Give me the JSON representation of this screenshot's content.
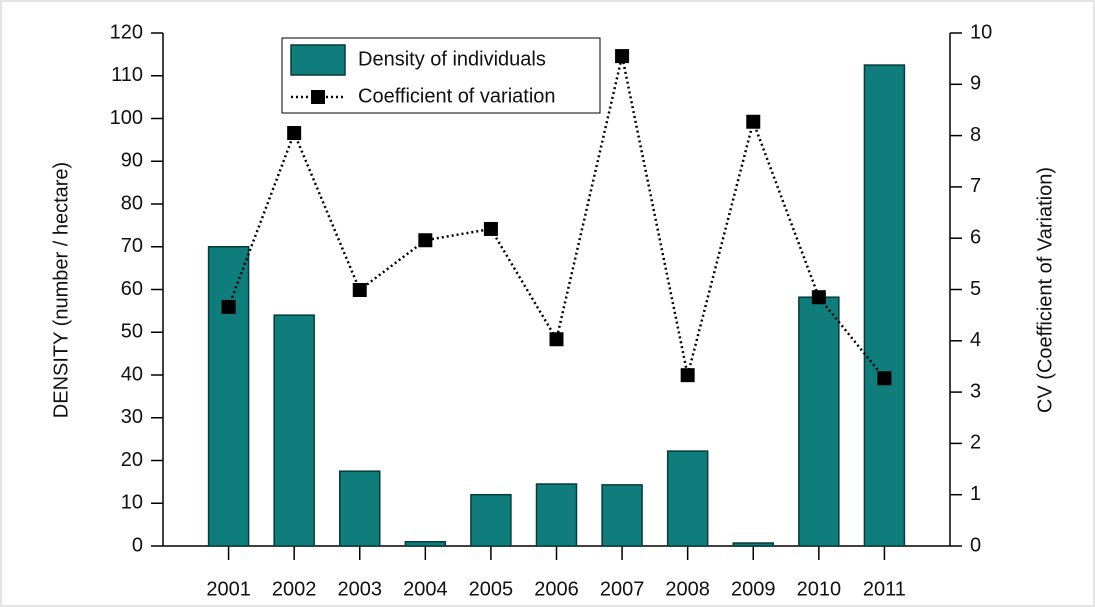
{
  "chart_data": {
    "type": "bar",
    "categories": [
      "2001",
      "2002",
      "2003",
      "2004",
      "2005",
      "2006",
      "2007",
      "2008",
      "2009",
      "2010",
      "2011"
    ],
    "series": [
      {
        "name": "Density of individuals",
        "color": "#0e7d7c",
        "values": [
          70,
          54,
          17.5,
          1,
          12,
          14.5,
          14.3,
          22.2,
          0.7,
          58.2,
          112.5
        ]
      },
      {
        "name": "Coefficient of variation",
        "type": "line",
        "axis": "y2",
        "color": "#000000",
        "values": [
          4.66,
          8.05,
          4.99,
          5.96,
          6.18,
          4.03,
          9.55,
          3.33,
          8.27,
          4.85,
          3.27
        ]
      }
    ],
    "y_label": "DENSITY (number / hectare)",
    "y2_label": "CV (Coefficient of Variation)",
    "ylim": [
      0,
      120
    ],
    "yticks": [
      0,
      10,
      20,
      30,
      40,
      50,
      60,
      70,
      80,
      90,
      100,
      110,
      120
    ],
    "y2lim": [
      0,
      10
    ],
    "y2ticks": [
      0,
      1,
      2,
      3,
      4,
      5,
      6,
      7,
      8,
      9,
      10
    ],
    "legend": "top"
  }
}
